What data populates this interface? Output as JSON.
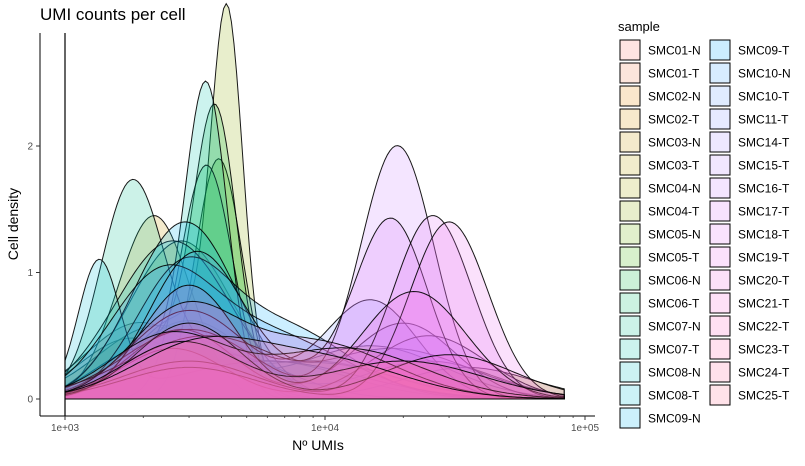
{
  "chart_data": {
    "type": "area",
    "title": "UMI counts per cell",
    "xlabel": "Nº UMIs",
    "ylabel": "Cell density",
    "x_scale": "log10",
    "xlim": [
      1000,
      100000
    ],
    "ylim": [
      0,
      2.75
    ],
    "x_ticks": [
      1000,
      10000,
      100000
    ],
    "x_tick_labels": [
      "1e+03",
      "1e+04",
      "1e+05"
    ],
    "y_ticks": [
      0,
      1,
      2
    ],
    "y_tick_labels": [
      "0",
      "1",
      "2"
    ],
    "grid": false,
    "legend_title": "sample",
    "legend_position": "right",
    "series": [
      {
        "name": "SMC01-N",
        "color": "#F8766D",
        "peaks": [
          [
            1900,
            0.58,
            0.2
          ],
          [
            9000,
            0.3,
            0.3
          ]
        ]
      },
      {
        "name": "SMC01-T",
        "color": "#F07E4B",
        "peaks": [
          [
            1700,
            0.42,
            0.18
          ],
          [
            6000,
            0.3,
            0.3
          ]
        ]
      },
      {
        "name": "SMC02-N",
        "color": "#E58700",
        "peaks": [
          [
            2200,
            0.55,
            0.22
          ],
          [
            9500,
            0.28,
            0.3
          ]
        ]
      },
      {
        "name": "SMC02-T",
        "color": "#D89000",
        "peaks": [
          [
            2500,
            0.38,
            0.22
          ],
          [
            15000,
            0.42,
            0.28
          ]
        ]
      },
      {
        "name": "SMC03-N",
        "color": "#C99800",
        "peaks": [
          [
            2200,
            1.45,
            0.14
          ]
        ]
      },
      {
        "name": "SMC03-T",
        "color": "#B79F00",
        "peaks": [
          [
            3000,
            0.62,
            0.22
          ],
          [
            25000,
            0.3,
            0.25
          ]
        ]
      },
      {
        "name": "SMC04-N",
        "color": "#A3A500",
        "peaks": [
          [
            2800,
            1.25,
            0.2
          ]
        ]
      },
      {
        "name": "SMC04-T",
        "color": "#8BAB00",
        "peaks": [
          [
            4200,
            2.72,
            0.06
          ],
          [
            2800,
            0.65,
            0.18
          ]
        ]
      },
      {
        "name": "SMC05-N",
        "color": "#6BB100",
        "peaks": [
          [
            3000,
            0.48,
            0.2
          ],
          [
            35000,
            0.25,
            0.25
          ]
        ]
      },
      {
        "name": "SMC05-T",
        "color": "#39B600",
        "peaks": [
          [
            3900,
            1.9,
            0.09
          ]
        ]
      },
      {
        "name": "SMC06-N",
        "color": "#00BA38",
        "peaks": [
          [
            3800,
            2.0,
            0.08
          ],
          [
            2600,
            0.5,
            0.18
          ]
        ]
      },
      {
        "name": "SMC06-T",
        "color": "#00BE67",
        "peaks": [
          [
            3500,
            1.85,
            0.1
          ]
        ]
      },
      {
        "name": "SMC07-N",
        "color": "#00C08B",
        "peaks": [
          [
            1800,
            1.6,
            0.12
          ],
          [
            4000,
            0.35,
            0.25
          ]
        ]
      },
      {
        "name": "SMC07-T",
        "color": "#00C1AA",
        "peaks": [
          [
            3500,
            2.35,
            0.08
          ],
          [
            2000,
            0.4,
            0.18
          ]
        ]
      },
      {
        "name": "SMC08-N",
        "color": "#00BFC4",
        "peaks": [
          [
            2600,
            1.25,
            0.22
          ]
        ]
      },
      {
        "name": "SMC08-T",
        "color": "#00BCD8",
        "peaks": [
          [
            1350,
            1.05,
            0.08
          ],
          [
            6000,
            0.3,
            0.35
          ]
        ]
      },
      {
        "name": "SMC09-N",
        "color": "#00B4EF",
        "peaks": [
          [
            2900,
            1.4,
            0.2
          ]
        ]
      },
      {
        "name": "SMC09-T",
        "color": "#00A9FF",
        "peaks": [
          [
            2800,
            0.95,
            0.18
          ],
          [
            7000,
            0.55,
            0.25
          ]
        ]
      },
      {
        "name": "SMC10-N",
        "color": "#35A2FF",
        "peaks": [
          [
            2300,
            0.85,
            0.2
          ],
          [
            6000,
            0.5,
            0.3
          ]
        ]
      },
      {
        "name": "SMC10-T",
        "color": "#619CFF",
        "peaks": [
          [
            3200,
            1.15,
            0.18
          ],
          [
            18000,
            0.4,
            0.3
          ]
        ]
      },
      {
        "name": "SMC11-T",
        "color": "#8494FF",
        "peaks": [
          [
            3000,
            0.7,
            0.22
          ],
          [
            15000,
            0.78,
            0.18
          ]
        ]
      },
      {
        "name": "SMC14-T",
        "color": "#A58AFF",
        "peaks": [
          [
            2800,
            0.55,
            0.2
          ],
          [
            20000,
            0.6,
            0.2
          ]
        ]
      },
      {
        "name": "SMC15-T",
        "color": "#B983FF",
        "peaks": [
          [
            2600,
            0.4,
            0.2
          ],
          [
            25000,
            0.5,
            0.22
          ]
        ]
      },
      {
        "name": "SMC16-T",
        "color": "#C77CFF",
        "peaks": [
          [
            19000,
            2.0,
            0.14
          ],
          [
            3000,
            0.55,
            0.25
          ]
        ]
      },
      {
        "name": "SMC17-T",
        "color": "#D774F9",
        "peaks": [
          [
            18000,
            1.4,
            0.14
          ],
          [
            3500,
            0.5,
            0.3
          ]
        ]
      },
      {
        "name": "SMC18-T",
        "color": "#E36EF6",
        "peaks": [
          [
            26000,
            1.45,
            0.15
          ],
          [
            3000,
            0.3,
            0.25
          ]
        ]
      },
      {
        "name": "SMC19-T",
        "color": "#EC69EF",
        "peaks": [
          [
            30000,
            1.4,
            0.15
          ],
          [
            3000,
            0.25,
            0.25
          ]
        ]
      },
      {
        "name": "SMC20-T",
        "color": "#F564E3",
        "peaks": [
          [
            3000,
            0.9,
            0.18
          ],
          [
            22000,
            0.85,
            0.2
          ]
        ]
      },
      {
        "name": "SMC21-T",
        "color": "#FA62D5",
        "peaks": [
          [
            2800,
            0.65,
            0.2
          ],
          [
            9000,
            0.45,
            0.3
          ]
        ]
      },
      {
        "name": "SMC22-T",
        "color": "#FE61C3",
        "peaks": [
          [
            3000,
            0.6,
            0.2
          ],
          [
            30000,
            0.35,
            0.25
          ]
        ]
      },
      {
        "name": "SMC23-T",
        "color": "#FF64B0",
        "peaks": [
          [
            2500,
            0.5,
            0.22
          ],
          [
            12000,
            0.4,
            0.3
          ]
        ]
      },
      {
        "name": "SMC24-T",
        "color": "#FF699C",
        "peaks": [
          [
            2800,
            0.45,
            0.22
          ],
          [
            20000,
            0.3,
            0.3
          ]
        ]
      },
      {
        "name": "SMC25-T",
        "color": "#FF6C91",
        "peaks": [
          [
            3200,
            0.4,
            0.25
          ],
          [
            10000,
            0.3,
            0.3
          ]
        ]
      }
    ]
  }
}
